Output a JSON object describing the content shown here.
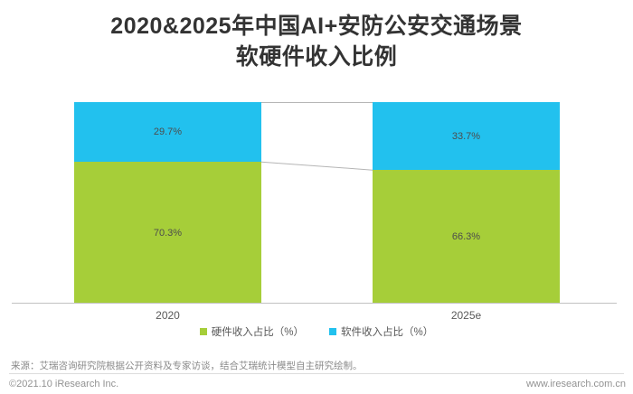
{
  "title": {
    "line1": "2020&2025年中国AI+安防公安交通场景",
    "line2": "软硬件收入比例"
  },
  "chart_data": {
    "type": "bar",
    "subtype": "stacked-percentage",
    "title": "2020&2025年中国AI+安防公安交通场景软硬件收入比例",
    "categories": [
      "2020",
      "2025e"
    ],
    "series": [
      {
        "name": "硬件收入占比（%）",
        "color": "#a6ce39",
        "values": [
          70.3,
          66.3
        ]
      },
      {
        "name": "软件收入占比（%）",
        "color": "#22c1ee",
        "values": [
          29.7,
          33.7
        ]
      }
    ],
    "ylim": [
      0,
      100
    ],
    "grid": false,
    "legend_position": "bottom",
    "value_label_format": "percent"
  },
  "footer": {
    "source": "来源：艾瑞咨询研究院根据公开资料及专家访谈，结合艾瑞统计模型自主研究绘制。",
    "copyright": "©2021.10 iResearch Inc.",
    "website": "www.iresearch.com.cn"
  }
}
